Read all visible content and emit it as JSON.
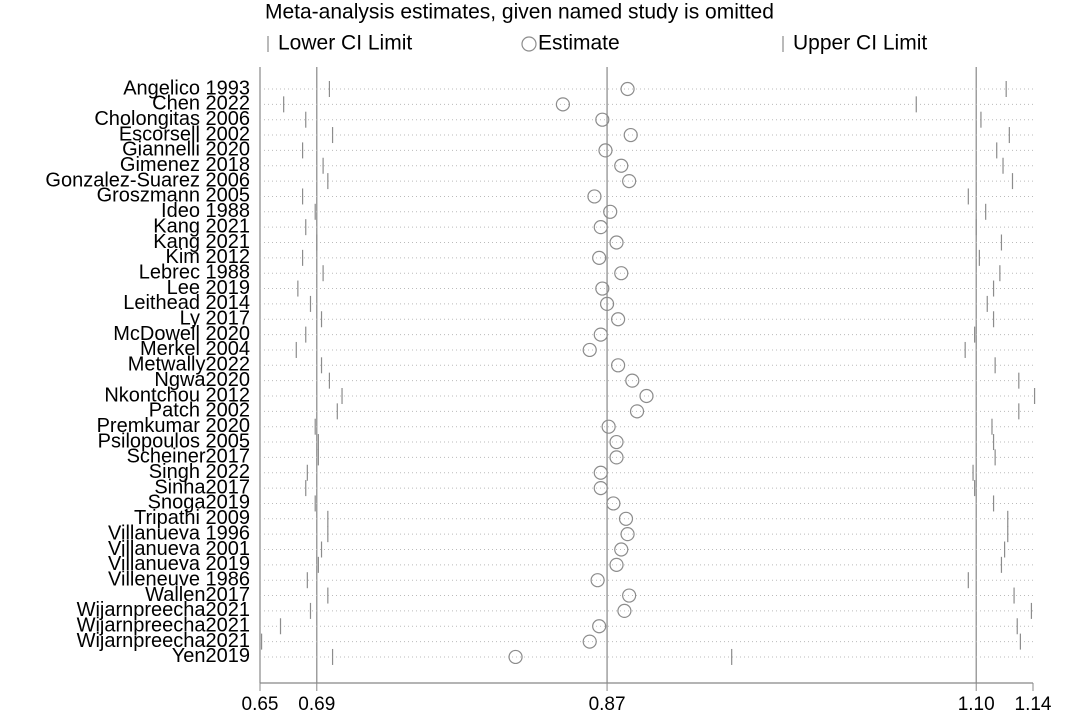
{
  "chart_data": {
    "type": "forest",
    "title": "Meta-analysis estimates, given named study is omitted",
    "categories": [
      "Angelico 1993",
      "Chen 2022",
      "Cholongitas 2006",
      "Escorsell 2002",
      "Giannelli 2020",
      "Gimenez 2018",
      "Gonzalez-Suarez 2006",
      "Groszmann 2005",
      "Ideo 1988",
      "Kang 2021",
      "Kang 2021",
      "Kim 2012",
      "Lebrec 1988",
      "Lee 2019",
      "Leithead 2014",
      "Ly 2017",
      "McDowell 2020",
      "Merkel 2004",
      "Metwally2022",
      "Ngwa2020",
      "Nkontchou 2012",
      "Patch 2002",
      "Premkumar 2020",
      "Psilopoulos 2005",
      "Scheiner2017",
      "Singh 2022",
      "Sinha2017",
      "Snoga2019",
      "Tripathi 2009",
      "Villanueva 1996",
      "Villanueva 2001",
      "Villanueva 2019",
      "Villeneuve 1986",
      "Wallen2017",
      "Wijarnpreecha2021",
      "Wijarnpreecha2021",
      "Wijarnpreecha2021",
      "Yen2019"
    ],
    "series": [
      {
        "name": "Lower CI Limit",
        "color": "#8c8c8c",
        "values": [
          0.694,
          0.665,
          0.679,
          0.696,
          0.677,
          0.69,
          0.693,
          0.677,
          0.685,
          0.679,
          0.686,
          0.677,
          0.69,
          0.674,
          0.682,
          0.689,
          0.679,
          0.673,
          0.689,
          0.694,
          0.702,
          0.699,
          0.685,
          0.687,
          0.687,
          0.68,
          0.679,
          0.685,
          0.693,
          0.693,
          0.689,
          0.687,
          0.68,
          0.693,
          0.682,
          0.663,
          0.651,
          0.696
        ]
      },
      {
        "name": "Estimate",
        "color": "#8c8c8c",
        "values": [
          0.883,
          0.842,
          0.867,
          0.885,
          0.869,
          0.879,
          0.884,
          0.862,
          0.872,
          0.866,
          0.876,
          0.865,
          0.879,
          0.867,
          0.87,
          0.877,
          0.866,
          0.859,
          0.877,
          0.886,
          0.895,
          0.889,
          0.871,
          0.876,
          0.876,
          0.866,
          0.866,
          0.874,
          0.882,
          0.883,
          0.879,
          0.876,
          0.864,
          0.884,
          0.881,
          0.865,
          0.859,
          0.812
        ]
      },
      {
        "name": "Upper CI Limit",
        "color": "#8c8c8c",
        "values": [
          1.123,
          1.066,
          1.107,
          1.125,
          1.117,
          1.121,
          1.127,
          1.099,
          1.11,
          1.104,
          1.12,
          1.106,
          1.119,
          1.115,
          1.111,
          1.115,
          1.103,
          1.097,
          1.116,
          1.131,
          1.141,
          1.131,
          1.114,
          1.115,
          1.116,
          1.102,
          1.103,
          1.115,
          1.124,
          1.124,
          1.122,
          1.12,
          1.099,
          1.128,
          1.139,
          1.13,
          1.132,
          0.949
        ]
      }
    ],
    "xlim": [
      0.65,
      1.14
    ],
    "xticks": [
      0.65,
      {
        "value": 0.686,
        "label": "0.69"
      },
      0.87,
      {
        "value": 1.104,
        "label": "1.10"
      },
      1.14
    ],
    "grid": true
  }
}
